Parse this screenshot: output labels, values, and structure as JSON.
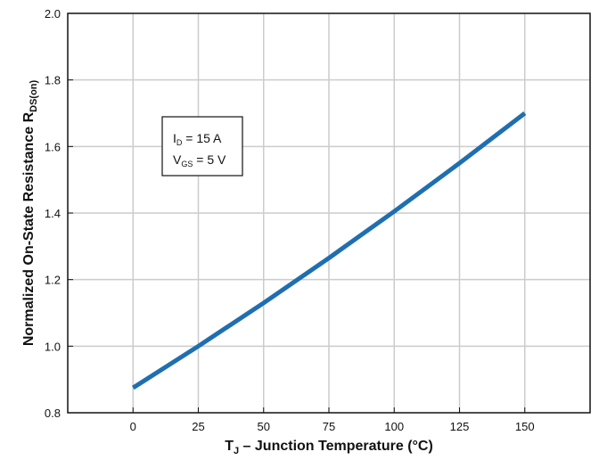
{
  "chart_data": {
    "type": "line",
    "xlabel": {
      "main": "T",
      "sub": "J",
      "rest": " – Junction Temperature (°C)"
    },
    "ylabel": {
      "main": "Normalized On-State Resistance R",
      "sub": "DS(on)"
    },
    "xlim": [
      -25,
      175
    ],
    "ylim": [
      0.8,
      2.0
    ],
    "xticks": [
      0,
      25,
      50,
      75,
      100,
      125,
      150
    ],
    "yticks": [
      0.8,
      1.0,
      1.2,
      1.4,
      1.6,
      1.8,
      2.0
    ],
    "ytick_labels": [
      "0.8",
      "1.0",
      "1.2",
      "1.4",
      "1.6",
      "1.8",
      "2.0"
    ],
    "grid": true,
    "annotation": [
      {
        "main": "I",
        "sub": "D",
        "rest": " = 15 A"
      },
      {
        "main": "V",
        "sub": "GS",
        "rest": " = 5 V"
      }
    ],
    "series": [
      {
        "color": "#1f6fb0",
        "x": [
          0,
          25,
          50,
          75,
          100,
          125,
          150
        ],
        "y": [
          0.875,
          1.0,
          1.13,
          1.265,
          1.405,
          1.55,
          1.7
        ]
      }
    ]
  }
}
